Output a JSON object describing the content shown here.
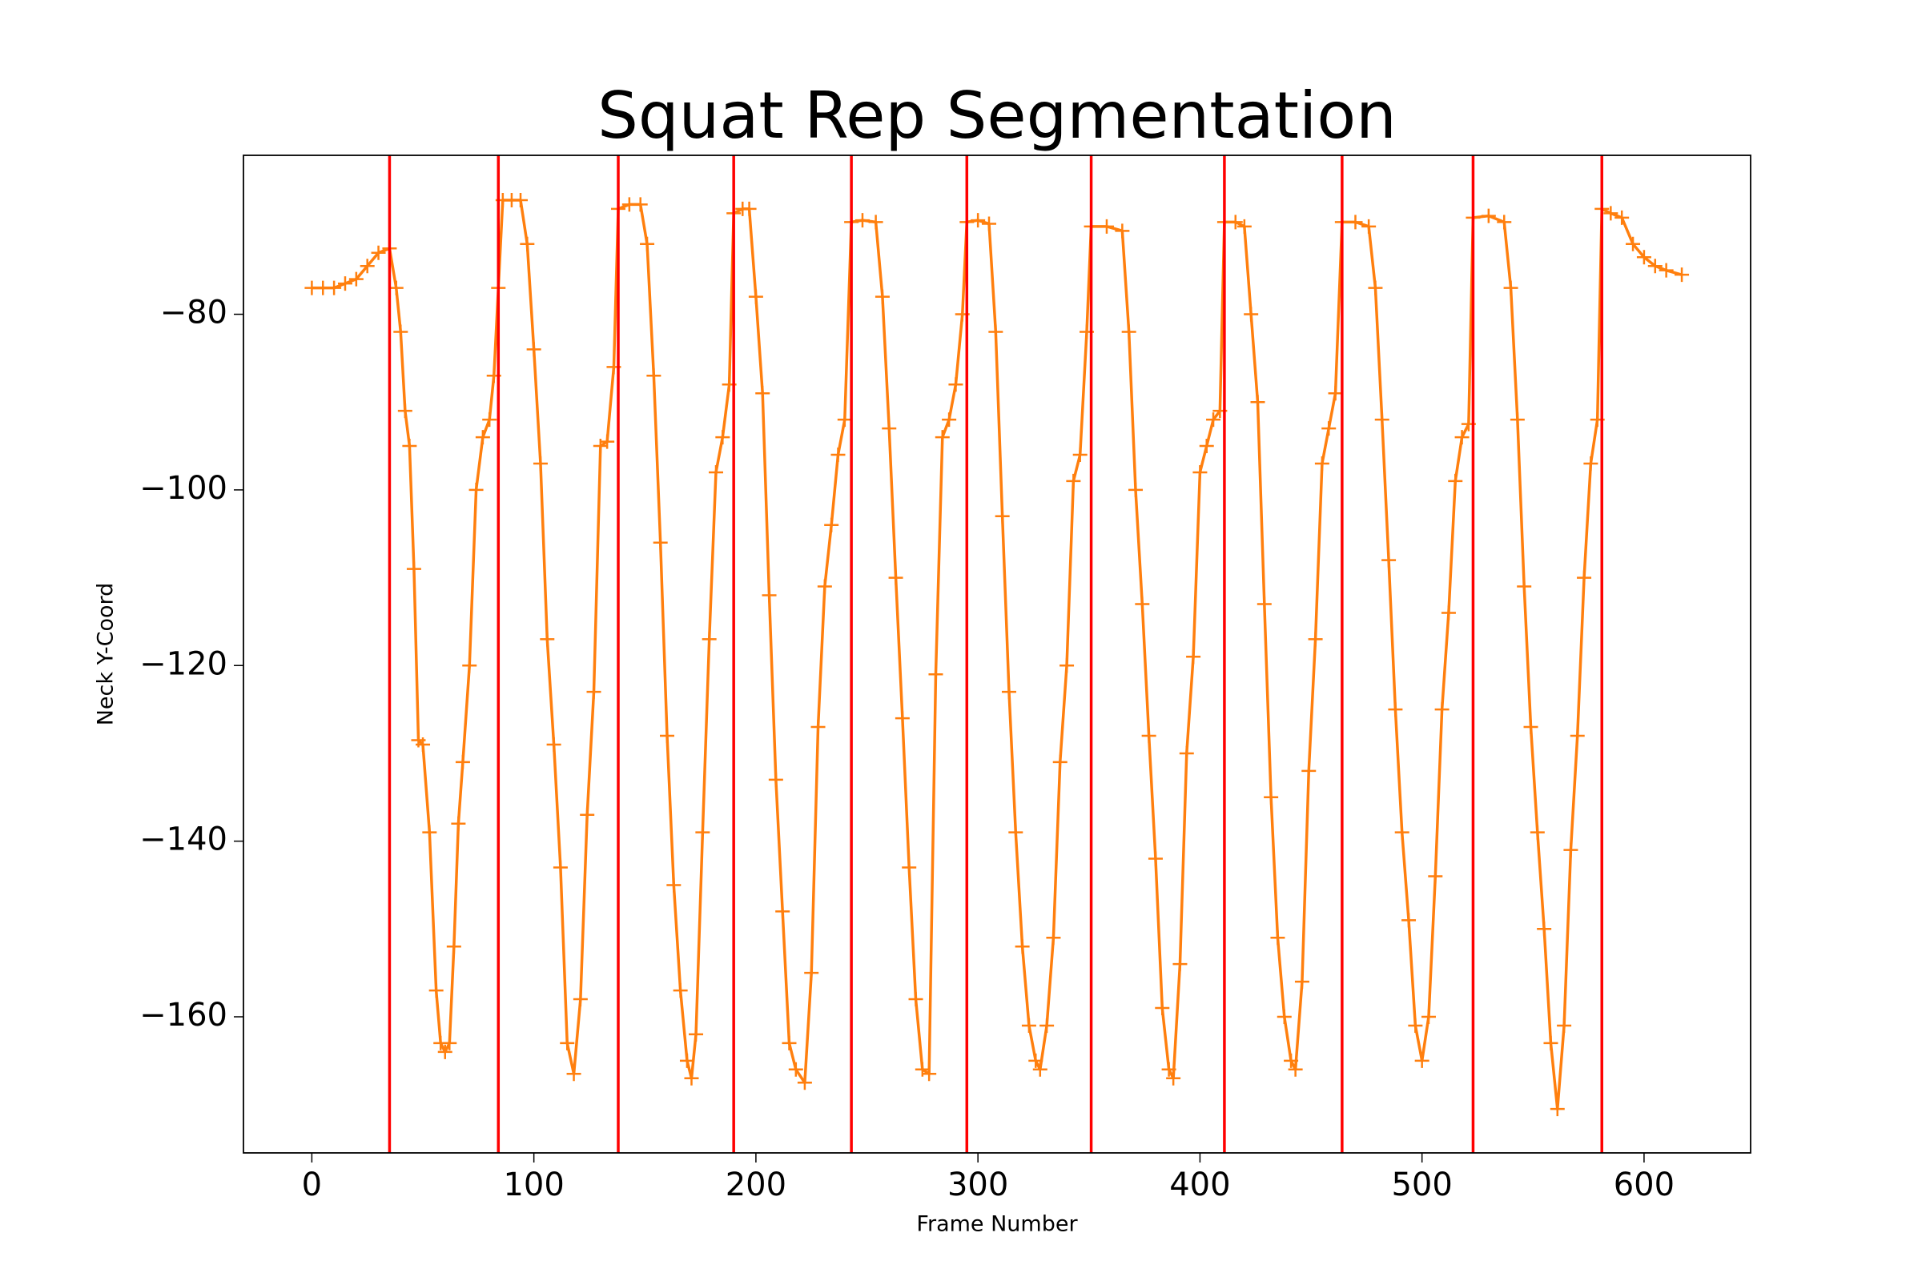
{
  "chart_data": {
    "type": "line",
    "title": "Squat Rep Segmentation",
    "xlabel": "Frame Number",
    "ylabel": "Neck Y-Coord",
    "xlim": [
      -30.8,
      648
    ],
    "ylim": [
      -175.5,
      -61.9
    ],
    "xticks": [
      0,
      100,
      200,
      300,
      400,
      500,
      600
    ],
    "yticks": [
      {
        "value": -80,
        "label": "−80"
      },
      {
        "value": -100,
        "label": "−100"
      },
      {
        "value": -120,
        "label": "−120"
      },
      {
        "value": -140,
        "label": "−140"
      },
      {
        "value": -160,
        "label": "−160"
      }
    ],
    "marker": "+",
    "vlines": {
      "color": "#ff0000",
      "values": [
        35,
        84,
        138,
        190,
        243,
        295,
        351,
        411,
        464,
        523,
        581
      ]
    },
    "series": [
      {
        "color": "#ff7f0e",
        "x": [
          0,
          5,
          10,
          15,
          20,
          25,
          30,
          35,
          38,
          40,
          42,
          44,
          46,
          48,
          50,
          53,
          56,
          58,
          60,
          62,
          64,
          66,
          68,
          71,
          74,
          77,
          80,
          82,
          84,
          86,
          90,
          94,
          97,
          100,
          103,
          106,
          109,
          112,
          115,
          118,
          121,
          124,
          127,
          130,
          133,
          136,
          138,
          143,
          148,
          151,
          154,
          157,
          160,
          163,
          166,
          169,
          171,
          173,
          176,
          179,
          182,
          185,
          188,
          190,
          194,
          197,
          200,
          203,
          206,
          209,
          212,
          215,
          218,
          222,
          225,
          228,
          231,
          234,
          237,
          240,
          243,
          248,
          254,
          257,
          260,
          263,
          266,
          269,
          272,
          275,
          278,
          281,
          284,
          287,
          290,
          293,
          295,
          300,
          305,
          308,
          311,
          314,
          317,
          320,
          323,
          326,
          328,
          331,
          334,
          337,
          340,
          343,
          346,
          349,
          351,
          358,
          365,
          368,
          371,
          374,
          377,
          380,
          383,
          386,
          388,
          391,
          394,
          397,
          400,
          403,
          406,
          409,
          411,
          416,
          420,
          423,
          426,
          429,
          432,
          435,
          438,
          441,
          443,
          446,
          449,
          452,
          455,
          458,
          461,
          464,
          470,
          476,
          479,
          482,
          485,
          488,
          491,
          494,
          497,
          500,
          503,
          506,
          509,
          512,
          515,
          518,
          521,
          523,
          530,
          537,
          540,
          543,
          546,
          549,
          552,
          555,
          558,
          561,
          564,
          567,
          570,
          573,
          576,
          579,
          581,
          585,
          590,
          595,
          600,
          605,
          610,
          617
        ],
        "values": [
          -77,
          -77,
          -77,
          -76.5,
          -76,
          -74.5,
          -73,
          -72.5,
          -77,
          -82,
          -91,
          -95,
          -109,
          -128.5,
          -129,
          -139,
          -157,
          -163,
          -164,
          -163,
          -152,
          -138,
          -131,
          -120,
          -100,
          -94,
          -92,
          -87,
          -77,
          -67,
          -67,
          -67,
          -72,
          -84,
          -97,
          -117,
          -129,
          -143,
          -163,
          -166.5,
          -158,
          -137,
          -123,
          -95,
          -94.5,
          -86,
          -68,
          -67.5,
          -67.5,
          -72,
          -87,
          -106,
          -128,
          -145,
          -157,
          -165,
          -167,
          -162,
          -139,
          -117,
          -98,
          -94,
          -88,
          -68.5,
          -68,
          -68,
          -78,
          -89,
          -112,
          -133,
          -148,
          -163,
          -166,
          -167.5,
          -155,
          -127,
          -111,
          -104,
          -96,
          -92,
          -69.5,
          -69.3,
          -69.5,
          -78,
          -93,
          -110,
          -126,
          -143,
          -158,
          -166,
          -166.5,
          -121,
          -94,
          -92,
          -88,
          -80,
          -69.5,
          -69.3,
          -69.7,
          -82,
          -103,
          -123,
          -139,
          -152,
          -161,
          -165,
          -166,
          -161,
          -151,
          -131,
          -120,
          -99,
          -96,
          -82,
          -70,
          -70,
          -70.5,
          -82,
          -100,
          -113,
          -128,
          -142,
          -159,
          -166,
          -167,
          -154,
          -130,
          -119,
          -98,
          -95,
          -92,
          -91,
          -69.5,
          -69.5,
          -70,
          -80,
          -90,
          -113,
          -135,
          -151,
          -160,
          -165,
          -166,
          -156,
          -132,
          -117,
          -97,
          -93,
          -89,
          -69.5,
          -69.5,
          -70,
          -77,
          -92,
          -108,
          -125,
          -139,
          -149,
          -161,
          -165,
          -160,
          -144,
          -125,
          -114,
          -99,
          -94,
          -92.5,
          -69,
          -68.8,
          -69.5,
          -77,
          -92,
          -111,
          -127,
          -139,
          -150,
          -163,
          -170.5,
          -161,
          -141,
          -128,
          -110,
          -97,
          -92,
          -68,
          -68.5,
          -69,
          -72,
          -73.5,
          -74.5,
          -75,
          -75.5
        ]
      }
    ]
  }
}
